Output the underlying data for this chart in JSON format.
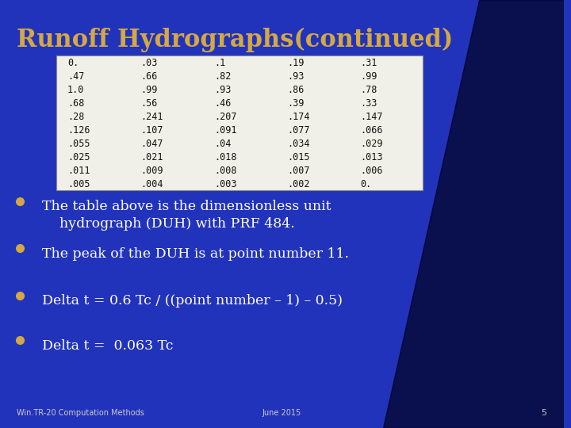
{
  "title": "Runoff Hydrographs(continued)",
  "title_color": "#D4A843",
  "bg_color_top": "#1a1a8c",
  "bg_color": "#2233bb",
  "table_data": [
    [
      "0.",
      ".03",
      ".1",
      ".19",
      ".31"
    ],
    [
      ".47",
      ".66",
      ".82",
      ".93",
      ".99"
    ],
    [
      "1.0",
      ".99",
      ".93",
      ".86",
      ".78"
    ],
    [
      ".68",
      ".56",
      ".46",
      ".39",
      ".33"
    ],
    [
      ".28",
      ".241",
      ".207",
      ".174",
      ".147"
    ],
    [
      ".126",
      ".107",
      ".091",
      ".077",
      ".066"
    ],
    [
      ".055",
      ".047",
      ".04",
      ".034",
      ".029"
    ],
    [
      ".025",
      ".021",
      ".018",
      ".015",
      ".013"
    ],
    [
      ".011",
      ".009",
      ".008",
      ".007",
      ".006"
    ],
    [
      ".005",
      ".004",
      ".003",
      ".002",
      "0."
    ]
  ],
  "bullet_color": "#D4A843",
  "bullet_points": [
    "The table above is the dimensionless unit\n    hydrograph (DUH) with PRF 484.",
    "The peak of the DUH is at point number 11.",
    "Delta t = 0.6 Tc / ((point number – 1) – 0.5)",
    "Delta t =  0.063 Tc"
  ],
  "footer_left": "Win.TR-20 Computation Methods",
  "footer_right": "June 2015",
  "footer_page": "5",
  "text_color": "#ffffff",
  "table_bg": "#f0f0e8",
  "table_text_color": "#111111"
}
